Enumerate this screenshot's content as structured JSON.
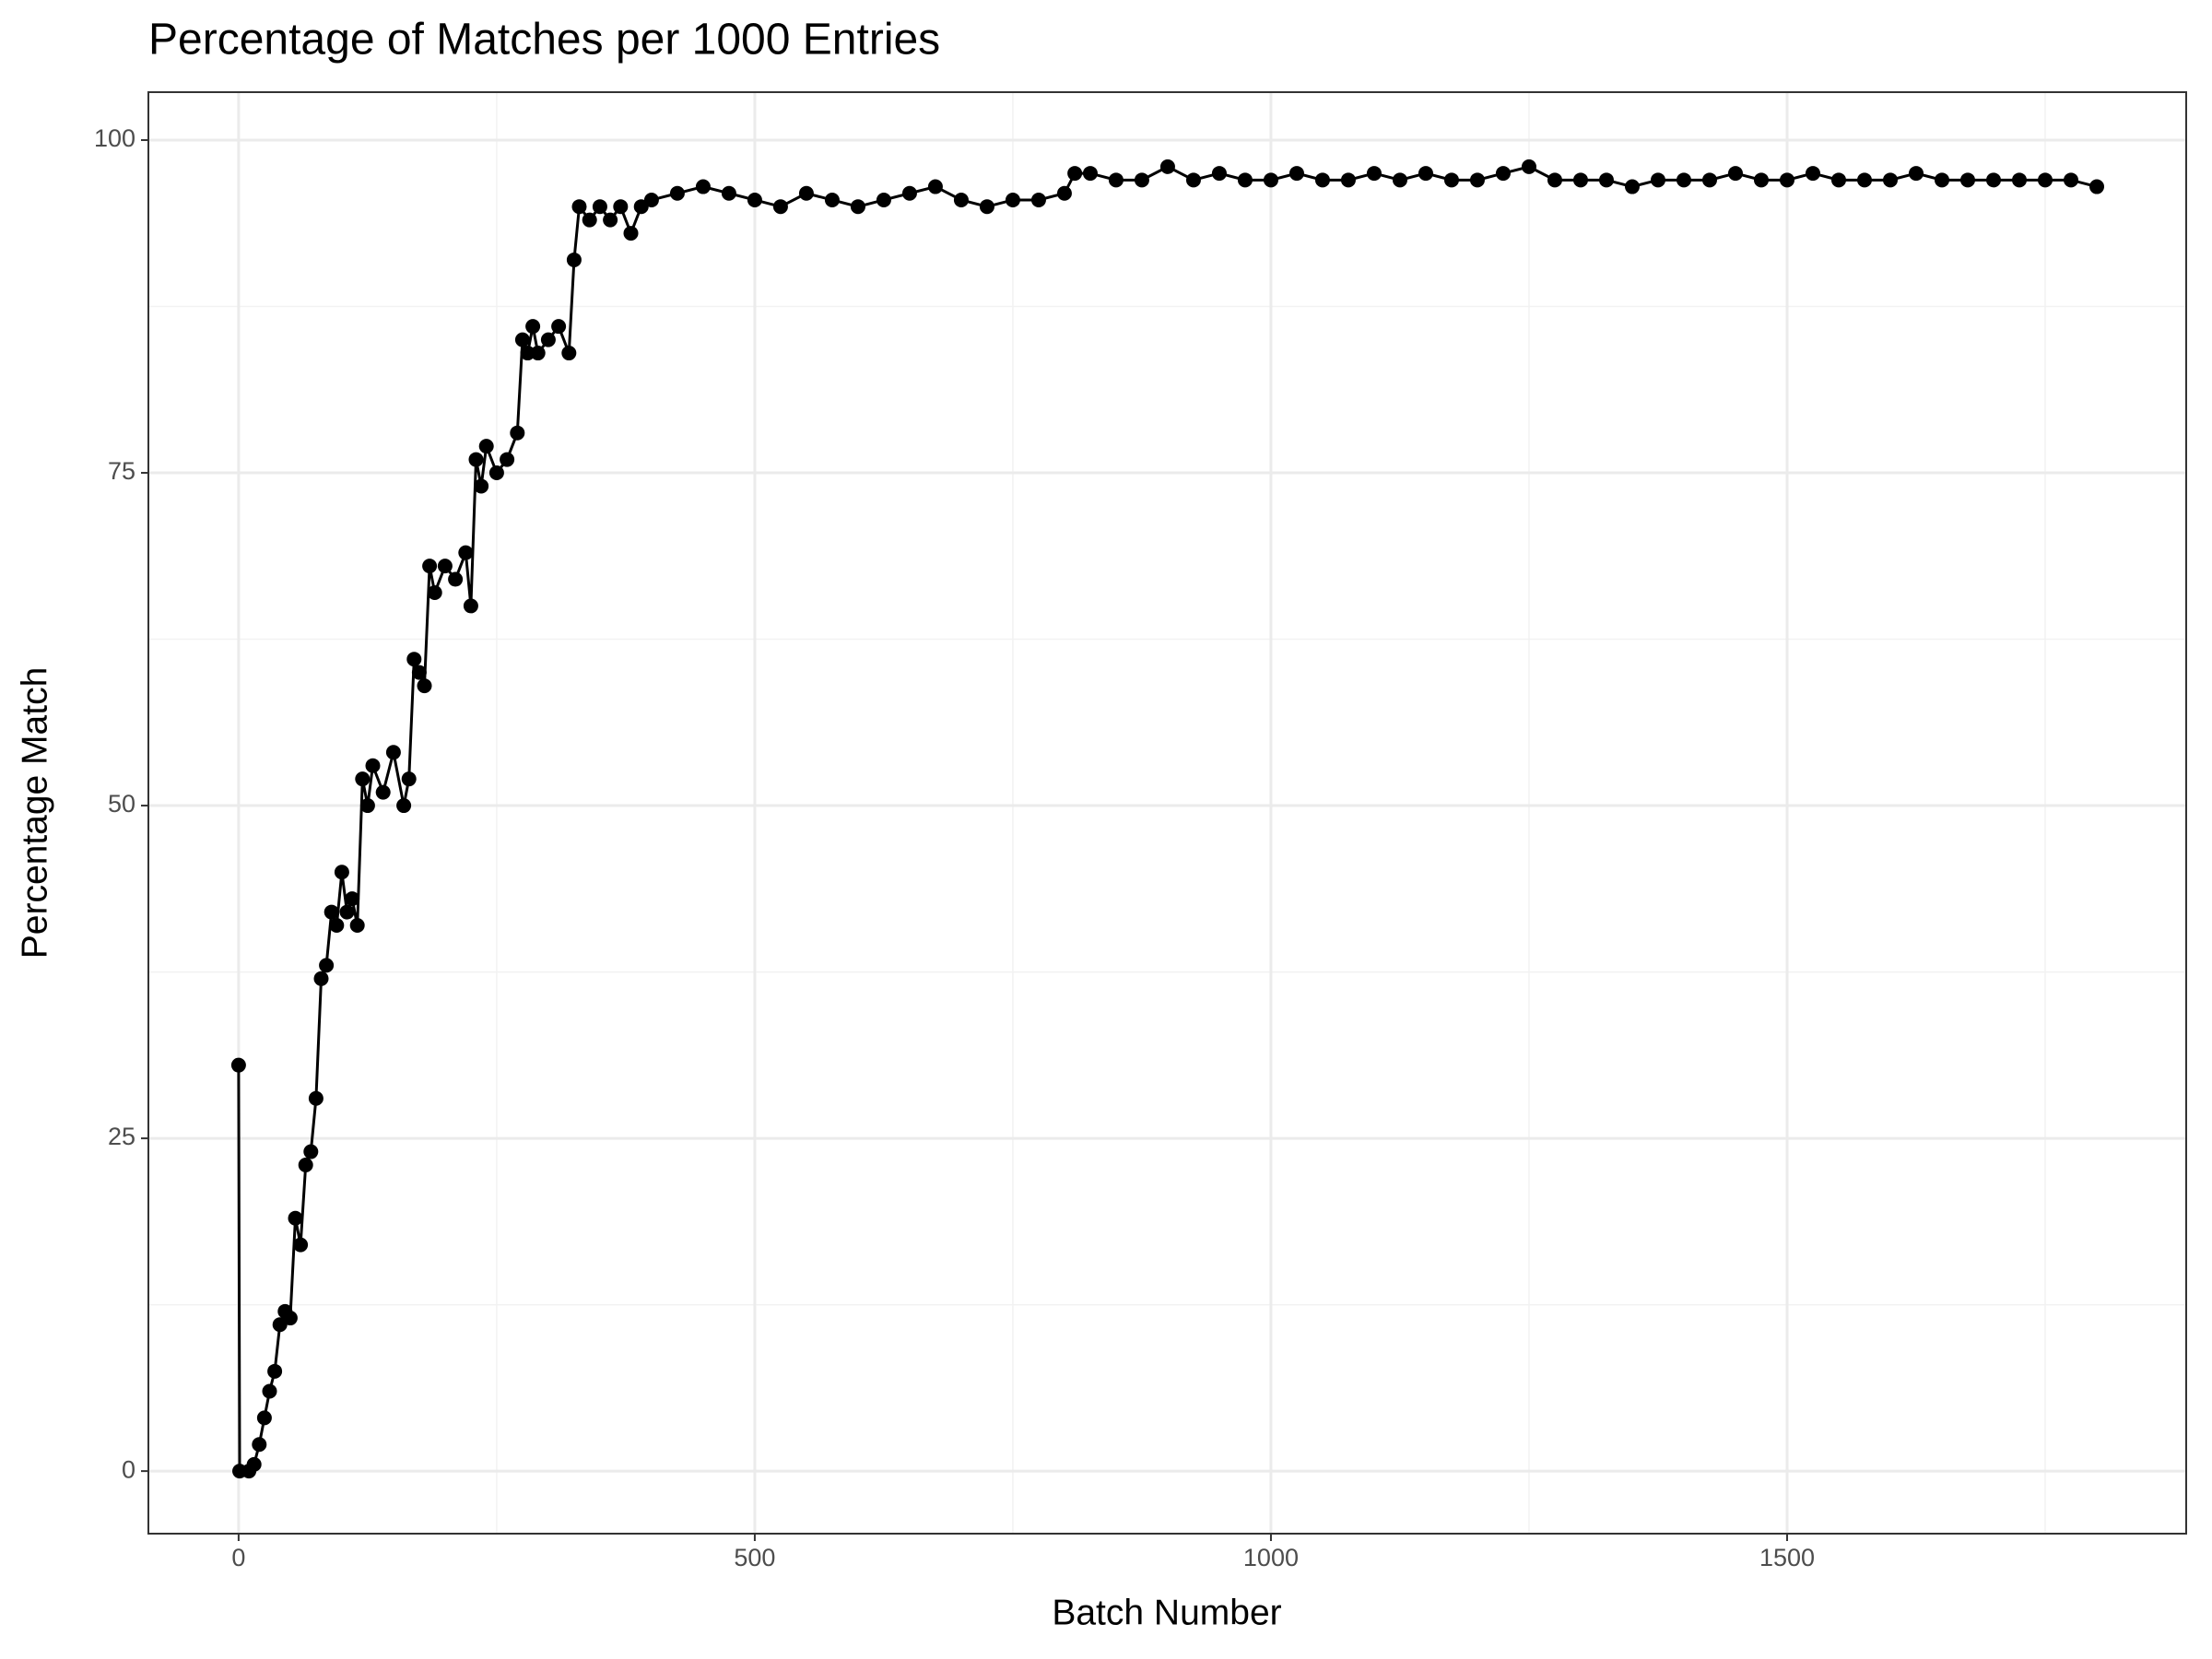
{
  "chart_data": {
    "type": "line",
    "title": "Percentage of Matches per 1000 Entries",
    "x_label": "Batch Number",
    "y_label": "Percentage Match",
    "x": [
      0,
      1,
      10,
      15,
      20,
      25,
      30,
      35,
      40,
      45,
      50,
      55,
      60,
      65,
      70,
      75,
      80,
      85,
      90,
      95,
      100,
      105,
      110,
      115,
      120,
      125,
      130,
      140,
      150,
      160,
      165,
      170,
      175,
      180,
      185,
      190,
      200,
      210,
      220,
      225,
      230,
      235,
      240,
      250,
      260,
      270,
      275,
      280,
      285,
      290,
      300,
      310,
      320,
      325,
      330,
      340,
      350,
      360,
      370,
      380,
      390,
      400,
      425,
      450,
      475,
      500,
      525,
      550,
      575,
      600,
      625,
      650,
      675,
      700,
      725,
      750,
      775,
      800,
      810,
      825,
      850,
      875,
      900,
      925,
      950,
      975,
      1000,
      1025,
      1050,
      1075,
      1100,
      1125,
      1150,
      1175,
      1200,
      1225,
      1250,
      1275,
      1300,
      1325,
      1350,
      1375,
      1400,
      1425,
      1450,
      1475,
      1500,
      1525,
      1550,
      1575,
      1600,
      1625,
      1650,
      1675,
      1700,
      1725,
      1750,
      1775,
      1800
    ],
    "values": [
      30.5,
      0,
      0,
      0.5,
      2,
      4,
      6,
      7.5,
      11,
      12,
      11.5,
      19,
      17,
      23,
      24,
      28,
      37,
      38,
      42,
      41,
      45,
      42,
      43,
      41,
      52,
      50,
      53,
      51,
      54,
      50,
      52,
      61,
      60,
      59,
      68,
      66,
      68,
      67,
      69,
      65,
      76,
      74,
      77,
      75,
      76,
      78,
      85,
      84,
      86,
      84,
      85,
      86,
      84,
      91,
      95,
      94,
      95,
      94,
      95,
      93,
      95,
      95.5,
      96,
      96.5,
      96,
      95.5,
      95,
      96,
      95.5,
      95,
      95.5,
      96,
      96.5,
      95.5,
      95,
      95.5,
      95.5,
      96,
      97.5,
      97.5,
      97,
      97,
      98,
      97,
      97.5,
      97,
      97,
      97.5,
      97,
      97,
      97.5,
      97,
      97.5,
      97,
      97,
      97.5,
      98,
      97,
      97,
      97,
      96.5,
      97,
      97,
      97,
      97.5,
      97,
      97,
      97.5,
      97,
      97,
      97,
      97.5,
      97,
      97,
      97,
      97,
      97,
      97,
      96.5
    ],
    "color": "#000000",
    "xlim": [
      -87.4,
      1886.6
    ],
    "ylim": [
      -4.7,
      103.6
    ],
    "xticks": [
      0,
      500,
      1000,
      1500
    ],
    "yticks": [
      0,
      25,
      50,
      75,
      100
    ],
    "xminor": [
      250,
      750,
      1250,
      1750
    ],
    "yminor": [
      12.5,
      37.5,
      62.5,
      87.5
    ],
    "grid": true
  }
}
